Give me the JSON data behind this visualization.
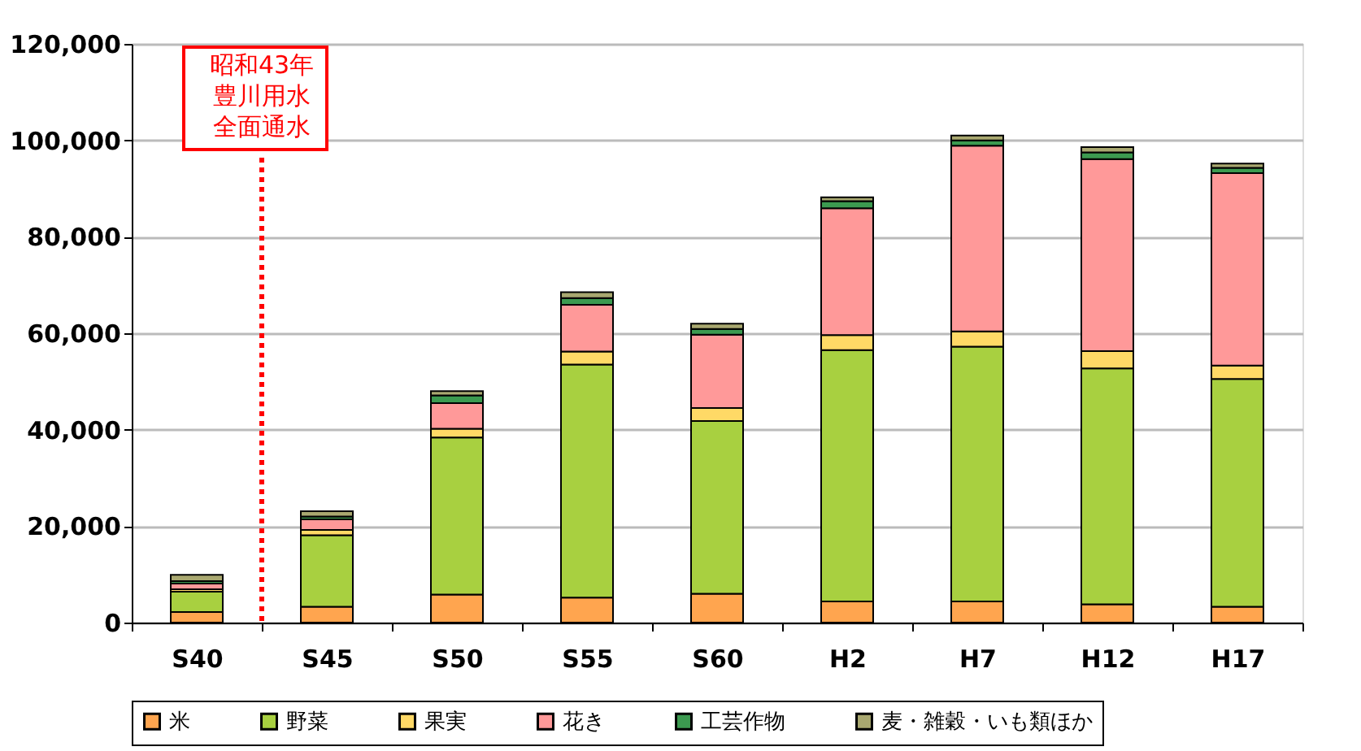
{
  "chart_data": {
    "type": "bar",
    "stacked": true,
    "categories": [
      "S40",
      "S45",
      "S50",
      "S55",
      "S60",
      "H2",
      "H7",
      "H12",
      "H17"
    ],
    "series": [
      {
        "name": "米",
        "color": "#ffa54f",
        "values": [
          2200,
          3300,
          5800,
          5200,
          6000,
          4400,
          4400,
          3800,
          3300
        ]
      },
      {
        "name": "野菜",
        "color": "#a8d040",
        "values": [
          4200,
          14800,
          32600,
          48300,
          35800,
          52100,
          52800,
          48900,
          47200
        ]
      },
      {
        "name": "果実",
        "color": "#ffd966",
        "values": [
          500,
          1100,
          1800,
          2700,
          2700,
          3100,
          3200,
          3600,
          2800
        ]
      },
      {
        "name": "花き",
        "color": "#ff9999",
        "values": [
          1200,
          2200,
          5300,
          9700,
          15200,
          26300,
          38500,
          39800,
          39900
        ]
      },
      {
        "name": "工芸作物",
        "color": "#3c9a50",
        "values": [
          500,
          600,
          1600,
          1400,
          1200,
          1500,
          1100,
          1400,
          1100
        ]
      },
      {
        "name": "麦・雑穀・いも類ほか",
        "color": "#a9a870",
        "values": [
          1300,
          1100,
          900,
          1200,
          1100,
          800,
          1000,
          1100,
          900
        ]
      }
    ],
    "ylim": [
      0,
      120000
    ],
    "yticks": [
      {
        "value": 0,
        "label": "0"
      },
      {
        "value": 20000,
        "label": "20,000"
      },
      {
        "value": 40000,
        "label": "40,000"
      },
      {
        "value": 60000,
        "label": "60,000"
      },
      {
        "value": 80000,
        "label": "80,000"
      },
      {
        "value": 100000,
        "label": "100,000"
      },
      {
        "value": 120000,
        "label": "120,000"
      }
    ],
    "grid": "y",
    "legend": "bottom",
    "annotations": [
      "昭和43年",
      "豊川用水",
      "全面通水"
    ],
    "ref_lines": [
      {
        "axis": "x",
        "value": "S45",
        "color": "#ff0000",
        "line_style": "dotted"
      }
    ]
  }
}
